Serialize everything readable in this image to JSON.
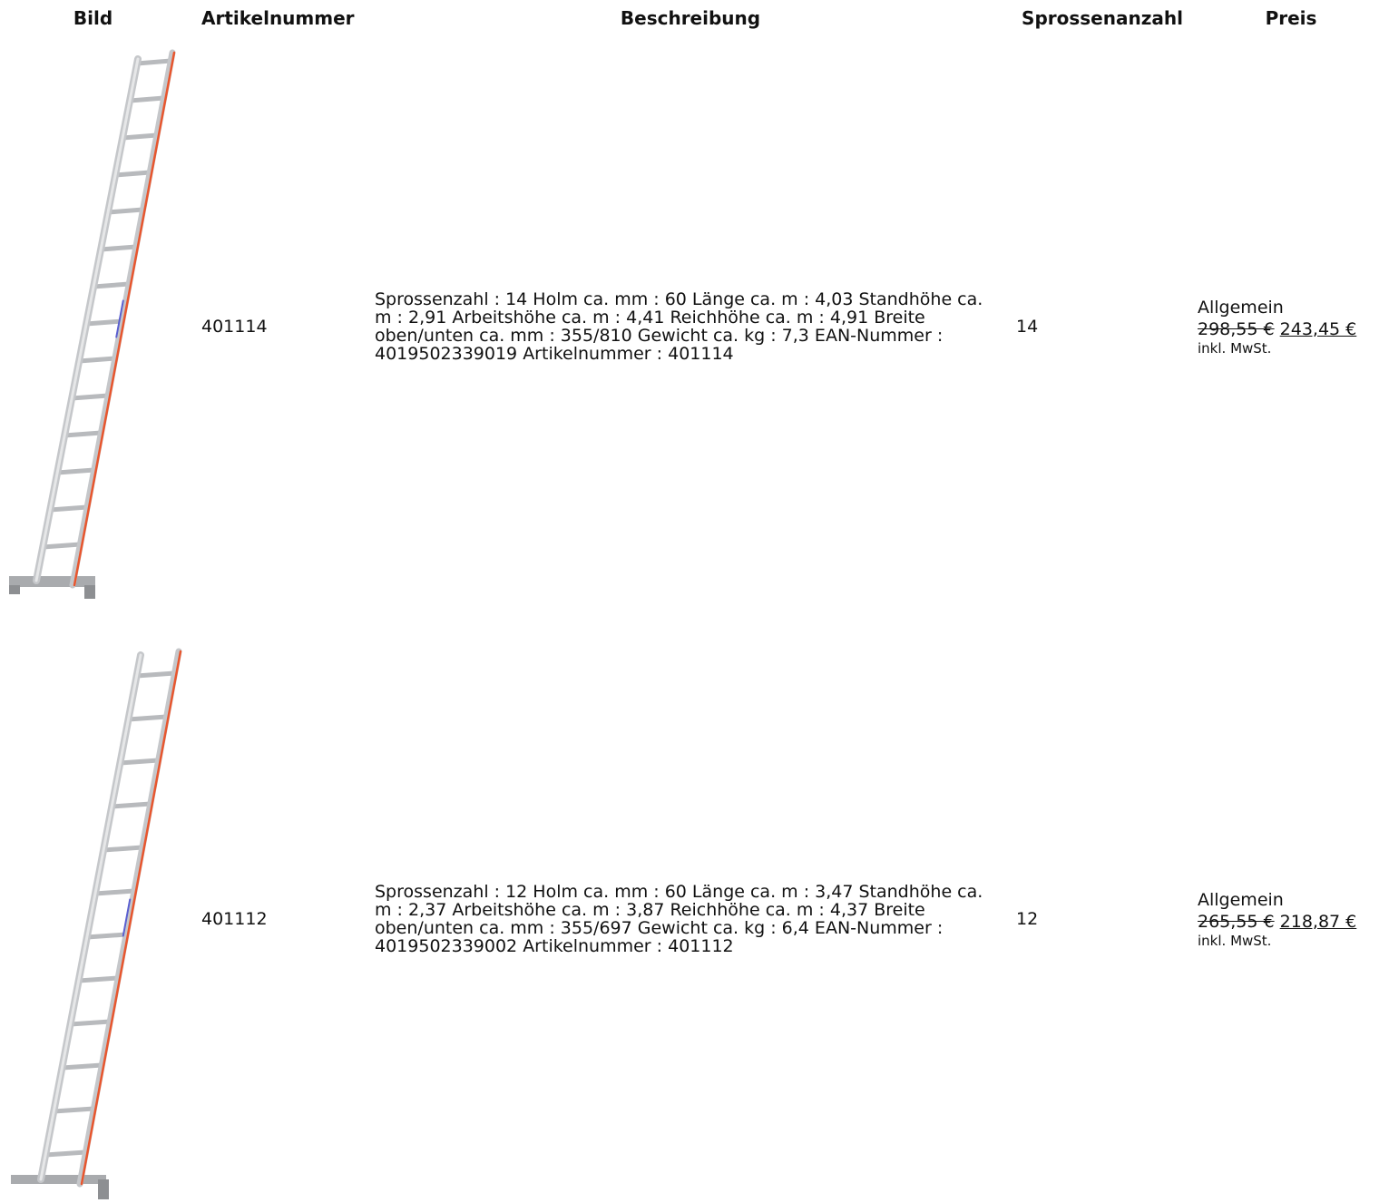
{
  "header": {
    "columns": [
      "Bild",
      "Artikelnummer",
      "Beschreibung",
      "Sprossenanzahl",
      "Preis"
    ]
  },
  "rows": [
    {
      "article": "401114",
      "description": "Sprossenzahl : 14 Holm ca. mm : 60 Länge ca. m : 4,03 Standhöhe ca. m : 2,91 Arbeitshöhe ca. m : 4,41 Reichhöhe ca. m : 4,91 Breite oben/unten ca. mm : 355/810 Gewicht ca. kg : 7,3 EAN-Nummer : 4019502339019 Artikelnummer : 401114",
      "rungs": 14,
      "price_label": "Allgemein",
      "old_price": "298,55 €",
      "new_price": "243,45 €",
      "tax_note": "inkl. MwSt."
    },
    {
      "article": "401112",
      "description": "Sprossenzahl : 12 Holm ca. mm : 60 Länge ca. m : 3,47 Standhöhe ca. m : 2,37 Arbeitshöhe ca. m : 3,87 Reichhöhe ca. m : 4,37 Breite oben/unten ca. mm : 355/697 Gewicht ca. kg : 6,4 EAN-Nummer : 4019502339002 Artikelnummer : 401112",
      "rungs": 12,
      "price_label": "Allgemein",
      "old_price": "265,55 €",
      "new_price": "218,87 €",
      "tax_note": "inkl. MwSt."
    }
  ]
}
